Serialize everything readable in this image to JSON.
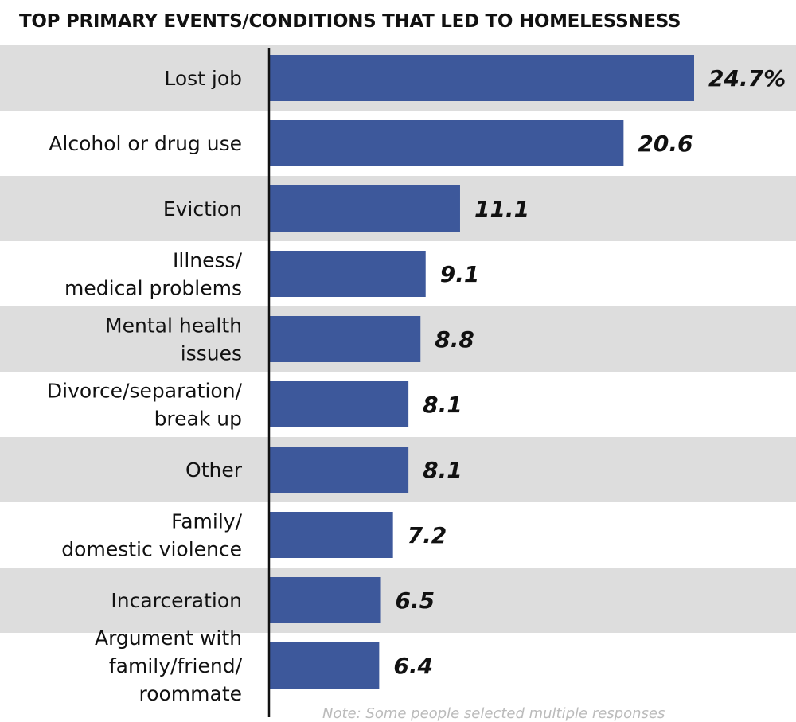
{
  "colors": {
    "bar": "#3d589b",
    "band": "#dddddd",
    "axis": "#111111",
    "text": "#111111"
  },
  "footnote": "Note: Some people selected multiple responses",
  "chart_data": {
    "type": "bar",
    "orientation": "horizontal",
    "title": "TOP PRIMARY EVENTS/CONDITIONS THAT LED TO HOMELESSNESS",
    "xlabel": "",
    "ylabel": "",
    "unit": "%",
    "xlim": [
      0,
      27
    ],
    "grid": false,
    "legend": "none",
    "categories": [
      [
        "Lost job"
      ],
      [
        "Alcohol or drug use"
      ],
      [
        "Eviction"
      ],
      [
        "Illness/",
        "medical problems"
      ],
      [
        "Mental health",
        "issues"
      ],
      [
        "Divorce/separation/",
        "break up"
      ],
      [
        "Other"
      ],
      [
        "Family/",
        "domestic violence"
      ],
      [
        "Incarceration"
      ],
      [
        "Argument with",
        "family/friend/",
        "roommate"
      ]
    ],
    "values": [
      24.7,
      20.6,
      11.1,
      9.1,
      8.8,
      8.1,
      8.1,
      7.2,
      6.5,
      6.4
    ],
    "value_labels": [
      "24.7%",
      "20.6",
      "11.1",
      "9.1",
      "8.8",
      "8.1",
      "8.1",
      "7.2",
      "6.5",
      "6.4"
    ]
  }
}
